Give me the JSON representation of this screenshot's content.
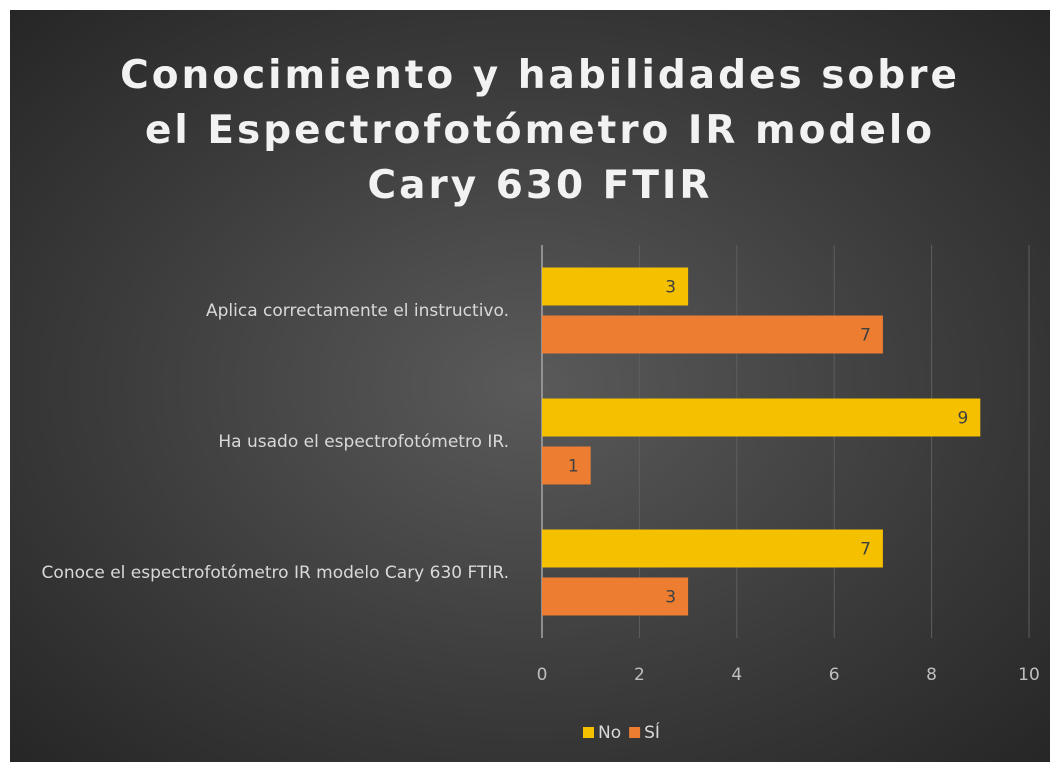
{
  "chart_data": {
    "type": "barh",
    "title": "Conocimiento y habilidades sobre el Espectrofotómetro IR modelo Cary 630 FTIR",
    "categories": [
      "Aplica correctamente el instructivo.",
      "Ha usado el espectrofotómetro IR.",
      "Conoce el espectrofotómetro IR modelo Cary 630 FTIR."
    ],
    "series": [
      {
        "name": "No",
        "color": "#f5c000",
        "values": [
          3,
          9,
          7
        ]
      },
      {
        "name": "SÍ",
        "color": "#ed7d31",
        "values": [
          7,
          1,
          3
        ]
      }
    ],
    "xlim": [
      0,
      10
    ],
    "xticks": [
      0,
      2,
      4,
      6,
      8,
      10
    ],
    "grid": true,
    "legend": "bottom"
  }
}
